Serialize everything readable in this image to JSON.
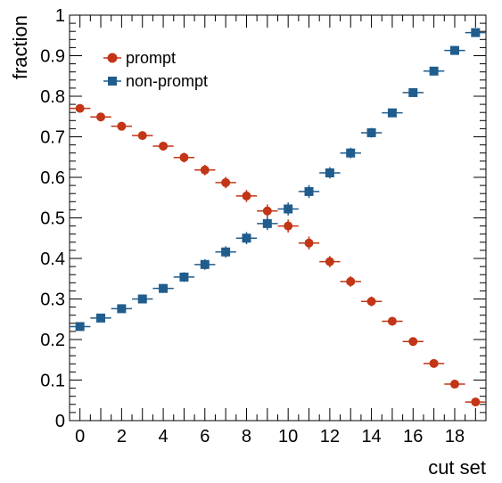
{
  "chart_data": {
    "type": "scatter",
    "xlabel": "cut set",
    "ylabel": "fraction",
    "xlim": [
      -0.5,
      19.5
    ],
    "ylim": [
      0,
      1
    ],
    "x_ticks": [
      0,
      2,
      4,
      6,
      8,
      10,
      12,
      14,
      16,
      18
    ],
    "y_ticks": [
      0,
      0.1,
      0.2,
      0.3,
      0.4,
      0.5,
      0.6,
      0.7,
      0.8,
      0.9,
      1
    ],
    "y_tick_labels": [
      "0",
      "0.1",
      "0.2",
      "0.3",
      "0.4",
      "0.5",
      "0.6",
      "0.7",
      "0.8",
      "0.9",
      "1"
    ],
    "grid": false,
    "legend_position": "top-left",
    "x": [
      0,
      1,
      2,
      3,
      4,
      5,
      6,
      7,
      8,
      9,
      10,
      11,
      12,
      13,
      14,
      15,
      16,
      17,
      18,
      19
    ],
    "series": [
      {
        "name": "prompt",
        "marker": "circle",
        "color": "#c23516",
        "values": [
          0.77,
          0.749,
          0.726,
          0.703,
          0.677,
          0.649,
          0.618,
          0.587,
          0.554,
          0.517,
          0.48,
          0.438,
          0.392,
          0.343,
          0.294,
          0.245,
          0.195,
          0.141,
          0.09,
          0.046
        ],
        "errors": [
          0.008,
          0.009,
          0.01,
          0.01,
          0.011,
          0.012,
          0.013,
          0.014,
          0.015,
          0.016,
          0.016,
          0.016,
          0.014,
          0.013,
          0.012,
          0.01,
          0.008,
          0.006,
          0.005,
          0.004
        ]
      },
      {
        "name": "non-prompt",
        "marker": "square",
        "color": "#205c8c",
        "values": [
          0.232,
          0.253,
          0.276,
          0.3,
          0.326,
          0.354,
          0.385,
          0.416,
          0.45,
          0.486,
          0.522,
          0.565,
          0.611,
          0.66,
          0.71,
          0.759,
          0.809,
          0.862,
          0.913,
          0.957
        ],
        "errors": [
          0.008,
          0.009,
          0.01,
          0.01,
          0.011,
          0.012,
          0.013,
          0.014,
          0.015,
          0.016,
          0.016,
          0.016,
          0.014,
          0.013,
          0.012,
          0.01,
          0.008,
          0.006,
          0.005,
          0.004
        ]
      }
    ]
  }
}
